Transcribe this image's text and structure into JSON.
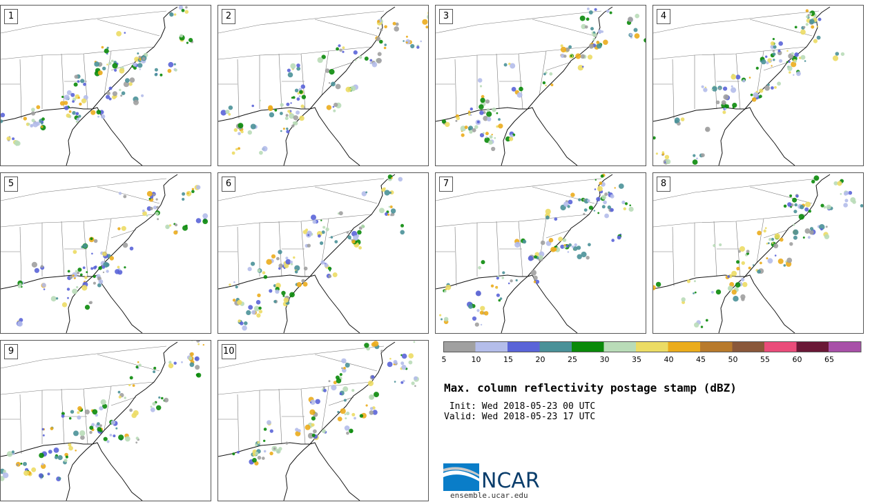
{
  "title": "Max. column reflectivity postage stamp (dBZ)",
  "init_line": " Init: Wed 2018-05-23 00 UTC",
  "valid_line": "Valid: Wed 2018-05-23 17 UTC",
  "logo_text": "NCAR",
  "logo_url": "ensemble.ucar.edu",
  "panels": [
    "1",
    "2",
    "3",
    "4",
    "5",
    "6",
    "7",
    "8",
    "9",
    "10"
  ],
  "colorbar": {
    "labels": [
      "5",
      "10",
      "15",
      "20",
      "25",
      "30",
      "35",
      "40",
      "45",
      "50",
      "55",
      "60",
      "65"
    ],
    "colors": [
      "#a0a0a0",
      "#b4bdea",
      "#5a64d8",
      "#4a9198",
      "#0a8a0a",
      "#b9dcb8",
      "#ecdc64",
      "#ebac1c",
      "#b87a2c",
      "#8a583a",
      "#ea4c7a",
      "#6a1836",
      "#a850a8"
    ]
  }
}
